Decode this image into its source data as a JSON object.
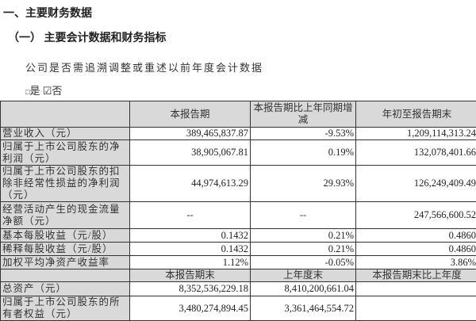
{
  "heading1": "一、主要财务数据",
  "heading2": "（一） 主要会计数据和财务指标",
  "question": "公司是否需追溯调整或重述以前年度会计数据",
  "options": {
    "yes": "是",
    "no": "否",
    "yes_checked": false,
    "no_checked": true
  },
  "table": {
    "header": [
      "",
      "本报告期",
      "本报告期比上年同期增减",
      "年初至报告期末"
    ],
    "rows": [
      [
        "营业收入（元）",
        "389,465,837.87",
        "-9.53%",
        "1,209,114,313.24"
      ],
      [
        "归属于上市公司股东的净利润（元）",
        "38,905,067.81",
        "0.19%",
        "132,078,401.66"
      ],
      [
        "归属于上市公司股东的扣除非经常性损益的净利润（元）",
        "44,974,613.29",
        "29.93%",
        "126,249,409.49"
      ],
      [
        "经营活动产生的现金流量净额（元）",
        "--",
        "--",
        "247,566,600.52"
      ],
      [
        "基本每股收益（元/股）",
        "0.1432",
        "0.21%",
        "0.4860"
      ],
      [
        "稀释每股收益（元/股）",
        "0.1432",
        "0.21%",
        "0.4860"
      ],
      [
        "加权平均净资产收益率",
        "1.12%",
        "-0.05%",
        "3.86%"
      ]
    ],
    "header2": [
      "",
      "本报告期末",
      "上年度末",
      "本报告期末比上年度"
    ],
    "rows2": [
      [
        "总资产（元）",
        "8,352,536,229.18",
        "8,410,200,661.04",
        ""
      ],
      [
        "归属于上市公司股东的所有者权益（元）",
        "3,480,274,894.45",
        "3,361,464,554.72",
        ""
      ]
    ]
  }
}
